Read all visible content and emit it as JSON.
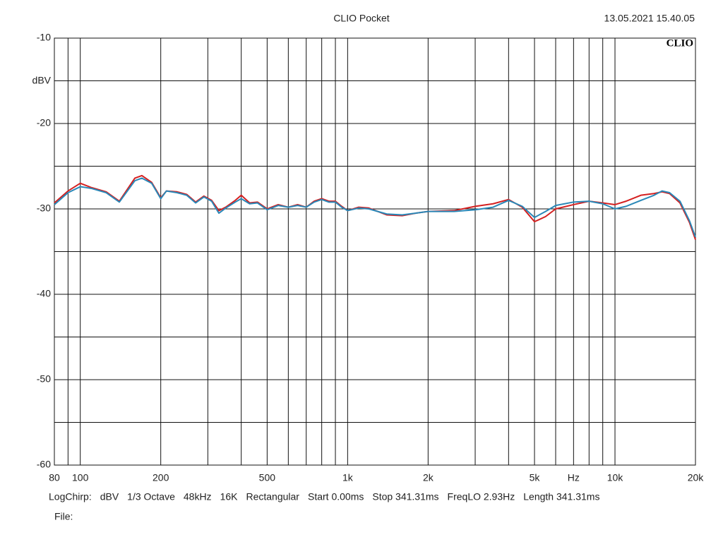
{
  "chart_data": {
    "type": "line",
    "title": "CLIO Pocket",
    "timestamp": "13.05.2021 15.40.05",
    "logo": "CLIO",
    "y_label": "dBV",
    "x_log": true,
    "grid": true,
    "xlim": [
      80,
      20000
    ],
    "ylim": [
      -60,
      -10
    ],
    "yticks": [
      -10,
      -20,
      -30,
      -40,
      -50,
      -60
    ],
    "y_minor_ticks": [
      -15,
      -25,
      -35,
      -45,
      -55
    ],
    "xticks": [
      80,
      100,
      200,
      500,
      {
        "value": 1000,
        "label": "1k"
      },
      {
        "value": 2000,
        "label": "2k"
      },
      {
        "value": 5000,
        "label": "5k"
      },
      {
        "value": 7000,
        "label": "Hz"
      },
      {
        "value": 10000,
        "label": "10k"
      },
      {
        "value": 20000,
        "label": "20k"
      }
    ],
    "x_minor_ticks": [
      90,
      300,
      400,
      600,
      700,
      800,
      900,
      3000,
      4000,
      6000,
      8000,
      9000
    ],
    "x": [
      80,
      90,
      100,
      110,
      125,
      140,
      160,
      170,
      185,
      200,
      210,
      230,
      250,
      270,
      290,
      310,
      330,
      350,
      380,
      400,
      430,
      460,
      500,
      550,
      600,
      650,
      700,
      750,
      800,
      850,
      900,
      950,
      1000,
      1100,
      1200,
      1400,
      1600,
      1800,
      2000,
      2500,
      3000,
      3500,
      4000,
      4500,
      5000,
      5500,
      6000,
      7000,
      8000,
      9000,
      10000,
      11000,
      12500,
      14000,
      15000,
      16000,
      17500,
      19000,
      20000
    ],
    "series": [
      {
        "color": "#d42020",
        "values": [
          -29.3,
          -27.9,
          -27.0,
          -27.5,
          -28.0,
          -29.1,
          -26.4,
          -26.1,
          -26.9,
          -28.7,
          -27.9,
          -28.0,
          -28.3,
          -29.2,
          -28.5,
          -29.0,
          -30.2,
          -29.8,
          -29.0,
          -28.4,
          -29.3,
          -29.2,
          -30.0,
          -29.5,
          -29.8,
          -29.5,
          -29.8,
          -29.1,
          -28.8,
          -29.1,
          -29.1,
          -29.7,
          -30.2,
          -29.8,
          -29.9,
          -30.7,
          -30.8,
          -30.5,
          -30.3,
          -30.2,
          -29.7,
          -29.4,
          -28.9,
          -29.8,
          -31.5,
          -30.9,
          -30.0,
          -29.5,
          -29.1,
          -29.3,
          -29.5,
          -29.1,
          -28.4,
          -28.2,
          -28.0,
          -28.2,
          -29.3,
          -31.6,
          -33.6
        ]
      },
      {
        "color": "#2a88b8",
        "values": [
          -29.5,
          -28.1,
          -27.4,
          -27.6,
          -28.1,
          -29.2,
          -26.7,
          -26.4,
          -27.0,
          -28.8,
          -27.9,
          -28.1,
          -28.4,
          -29.3,
          -28.6,
          -29.1,
          -30.5,
          -29.9,
          -29.2,
          -28.8,
          -29.4,
          -29.3,
          -30.1,
          -29.6,
          -29.8,
          -29.6,
          -29.8,
          -29.2,
          -28.9,
          -29.2,
          -29.2,
          -29.8,
          -30.2,
          -29.9,
          -30.0,
          -30.6,
          -30.7,
          -30.5,
          -30.3,
          -30.3,
          -30.1,
          -29.8,
          -29.0,
          -29.7,
          -31.0,
          -30.3,
          -29.6,
          -29.2,
          -29.1,
          -29.4,
          -30.0,
          -29.7,
          -29.0,
          -28.4,
          -27.9,
          -28.1,
          -29.1,
          -31.4,
          -33.3
        ]
      }
    ],
    "settings": [
      "LogChirp:",
      "dBV",
      "1/3 Octave",
      "48kHz",
      "16K",
      "Rectangular",
      "Start 0.00ms",
      "Stop 341.31ms",
      "FreqLO 2.93Hz",
      "Length 341.31ms"
    ],
    "file_label": "File:"
  }
}
